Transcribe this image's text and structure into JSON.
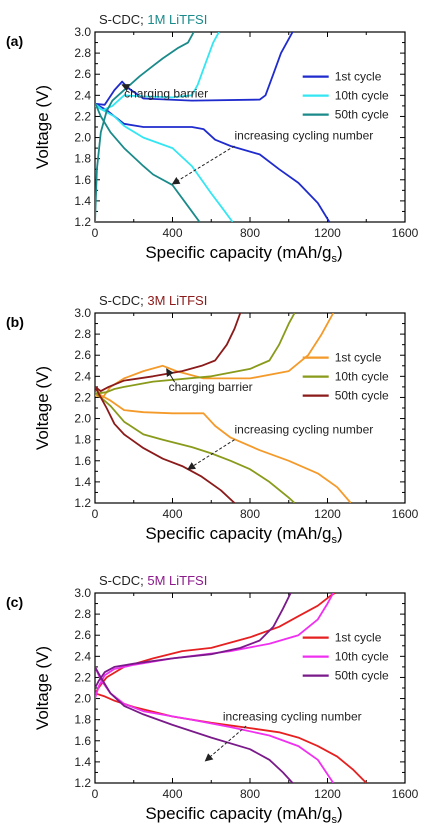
{
  "figure": {
    "x_label_main": "Specific capacity (mAh/g",
    "x_label_sub": "s",
    "x_label_end": ")",
    "y_label": "Voltage (V)"
  },
  "chart_data": [
    {
      "type": "line",
      "panel_label": "(a)",
      "title_prefix": "S-CDC; ",
      "title_highlight": "1M LiTFSI",
      "title_color": "#1a8a8a",
      "xlim": [
        0,
        1600
      ],
      "ylim": [
        1.2,
        3.0
      ],
      "x_ticks": [
        "0",
        "400",
        "800",
        "1200",
        "1600"
      ],
      "y_ticks": [
        "1.2",
        "1.4",
        "1.6",
        "1.8",
        "2.0",
        "2.2",
        "2.4",
        "2.6",
        "2.8",
        "3.0"
      ],
      "annotations": [
        {
          "text": "charging barrier",
          "x": 150,
          "y": 2.38,
          "arrow_to": [
            140,
            2.5
          ]
        },
        {
          "text": "increasing cycling number",
          "x": 720,
          "y": 1.98,
          "arrow_from": [
            720,
            1.92
          ],
          "arrow_to": [
            400,
            1.56
          ]
        }
      ],
      "series": [
        {
          "name": "1st cycle",
          "color": "#1f2bcc",
          "discharge": [
            [
              0,
              2.31
            ],
            [
              20,
              2.3
            ],
            [
              60,
              2.26
            ],
            [
              100,
              2.2
            ],
            [
              150,
              2.13
            ],
            [
              250,
              2.1
            ],
            [
              500,
              2.1
            ],
            [
              560,
              2.08
            ],
            [
              620,
              1.98
            ],
            [
              700,
              1.92
            ],
            [
              850,
              1.84
            ],
            [
              950,
              1.7
            ],
            [
              1050,
              1.57
            ],
            [
              1150,
              1.38
            ],
            [
              1210,
              1.2
            ]
          ],
          "charge": [
            [
              0,
              2.32
            ],
            [
              50,
              2.31
            ],
            [
              100,
              2.45
            ],
            [
              140,
              2.53
            ],
            [
              170,
              2.47
            ],
            [
              250,
              2.37
            ],
            [
              500,
              2.35
            ],
            [
              850,
              2.36
            ],
            [
              880,
              2.4
            ],
            [
              920,
              2.6
            ],
            [
              960,
              2.8
            ],
            [
              1020,
              3.0
            ]
          ]
        },
        {
          "name": "10th cycle",
          "color": "#33e6f2",
          "discharge": [
            [
              0,
              2.32
            ],
            [
              40,
              2.26
            ],
            [
              100,
              2.2
            ],
            [
              150,
              2.11
            ],
            [
              250,
              2.0
            ],
            [
              400,
              1.9
            ],
            [
              500,
              1.73
            ],
            [
              600,
              1.47
            ],
            [
              650,
              1.35
            ],
            [
              710,
              1.2
            ]
          ],
          "charge": [
            [
              0,
              2.3
            ],
            [
              40,
              2.26
            ],
            [
              90,
              2.3
            ],
            [
              150,
              2.4
            ],
            [
              250,
              2.39
            ],
            [
              400,
              2.38
            ],
            [
              500,
              2.4
            ],
            [
              530,
              2.5
            ],
            [
              570,
              2.7
            ],
            [
              610,
              2.9
            ],
            [
              640,
              3.0
            ]
          ]
        },
        {
          "name": "50th cycle",
          "color": "#1a8a8a",
          "discharge": [
            [
              0,
              2.33
            ],
            [
              30,
              2.2
            ],
            [
              80,
              2.05
            ],
            [
              150,
              1.9
            ],
            [
              250,
              1.73
            ],
            [
              300,
              1.65
            ],
            [
              400,
              1.55
            ],
            [
              480,
              1.35
            ],
            [
              540,
              1.2
            ]
          ],
          "charge": [
            [
              0,
              1.2
            ],
            [
              10,
              1.7
            ],
            [
              30,
              2.05
            ],
            [
              60,
              2.25
            ],
            [
              90,
              2.35
            ],
            [
              150,
              2.45
            ],
            [
              230,
              2.58
            ],
            [
              300,
              2.68
            ],
            [
              350,
              2.75
            ],
            [
              430,
              2.85
            ],
            [
              480,
              2.9
            ],
            [
              510,
              3.0
            ]
          ]
        }
      ]
    },
    {
      "type": "line",
      "panel_label": "(b)",
      "title_prefix": "S-CDC; ",
      "title_highlight": "3M LiTFSI",
      "title_color": "#8b1a1a",
      "xlim": [
        0,
        1600
      ],
      "ylim": [
        1.2,
        3.0
      ],
      "x_ticks": [
        "0",
        "400",
        "800",
        "1200",
        "1600"
      ],
      "y_ticks": [
        "1.2",
        "1.4",
        "1.6",
        "1.8",
        "2.0",
        "2.2",
        "2.4",
        "2.6",
        "2.8",
        "3.0"
      ],
      "annotations": [
        {
          "text": "charging barrier",
          "x": 380,
          "y": 2.26,
          "arrow_to": [
            370,
            2.47
          ]
        },
        {
          "text": "increasing cycling number",
          "x": 720,
          "y": 1.86,
          "arrow_from": [
            720,
            1.8
          ],
          "arrow_to": [
            480,
            1.52
          ]
        }
      ],
      "series": [
        {
          "name": "1st cycle",
          "color": "#f49a2a",
          "discharge": [
            [
              0,
              2.3
            ],
            [
              30,
              2.22
            ],
            [
              80,
              2.17
            ],
            [
              150,
              2.08
            ],
            [
              250,
              2.06
            ],
            [
              400,
              2.05
            ],
            [
              560,
              2.05
            ],
            [
              620,
              1.93
            ],
            [
              700,
              1.82
            ],
            [
              850,
              1.7
            ],
            [
              1000,
              1.6
            ],
            [
              1150,
              1.48
            ],
            [
              1250,
              1.35
            ],
            [
              1320,
              1.2
            ]
          ],
          "charge": [
            [
              0,
              2.22
            ],
            [
              40,
              2.2
            ],
            [
              80,
              2.3
            ],
            [
              150,
              2.38
            ],
            [
              250,
              2.45
            ],
            [
              350,
              2.5
            ],
            [
              420,
              2.45
            ],
            [
              560,
              2.38
            ],
            [
              800,
              2.38
            ],
            [
              1000,
              2.45
            ],
            [
              1100,
              2.6
            ],
            [
              1170,
              2.8
            ],
            [
              1230,
              3.0
            ]
          ]
        },
        {
          "name": "10th cycle",
          "color": "#8a9a1a",
          "discharge": [
            [
              0,
              2.25
            ],
            [
              30,
              2.2
            ],
            [
              80,
              2.12
            ],
            [
              150,
              1.97
            ],
            [
              250,
              1.85
            ],
            [
              350,
              1.8
            ],
            [
              500,
              1.73
            ],
            [
              600,
              1.67
            ],
            [
              700,
              1.6
            ],
            [
              800,
              1.52
            ],
            [
              900,
              1.4
            ],
            [
              1000,
              1.25
            ],
            [
              1030,
              1.2
            ]
          ],
          "charge": [
            [
              0,
              2.3
            ],
            [
              20,
              2.24
            ],
            [
              60,
              2.25
            ],
            [
              100,
              2.28
            ],
            [
              150,
              2.3
            ],
            [
              300,
              2.35
            ],
            [
              600,
              2.4
            ],
            [
              800,
              2.47
            ],
            [
              900,
              2.55
            ],
            [
              950,
              2.7
            ],
            [
              1000,
              2.9
            ],
            [
              1030,
              3.0
            ]
          ]
        },
        {
          "name": "50th cycle",
          "color": "#8b1a1a",
          "discharge": [
            [
              0,
              2.3
            ],
            [
              30,
              2.2
            ],
            [
              60,
              2.1
            ],
            [
              100,
              1.95
            ],
            [
              150,
              1.85
            ],
            [
              250,
              1.72
            ],
            [
              350,
              1.62
            ],
            [
              450,
              1.55
            ],
            [
              550,
              1.45
            ],
            [
              650,
              1.32
            ],
            [
              720,
              1.2
            ]
          ],
          "charge": [
            [
              0,
              2.3
            ],
            [
              30,
              2.26
            ],
            [
              70,
              2.3
            ],
            [
              150,
              2.36
            ],
            [
              300,
              2.4
            ],
            [
              450,
              2.45
            ],
            [
              550,
              2.5
            ],
            [
              620,
              2.55
            ],
            [
              680,
              2.7
            ],
            [
              720,
              2.85
            ],
            [
              750,
              3.0
            ]
          ]
        }
      ]
    },
    {
      "type": "line",
      "panel_label": "(c)",
      "title_prefix": "S-CDC; ",
      "title_highlight": "5M LiTFSI",
      "title_color": "#8b1a8b",
      "xlim": [
        0,
        1600
      ],
      "ylim": [
        1.2,
        3.0
      ],
      "x_ticks": [
        "0",
        "400",
        "800",
        "1200",
        "1600"
      ],
      "y_ticks": [
        "1.2",
        "1.4",
        "1.6",
        "1.8",
        "2.0",
        "2.2",
        "2.4",
        "2.6",
        "2.8",
        "3.0"
      ],
      "annotations": [
        {
          "text": "increasing cycling number",
          "x": 660,
          "y": 1.79,
          "arrow_from": [
            780,
            1.74
          ],
          "arrow_to": [
            570,
            1.41
          ]
        }
      ],
      "series": [
        {
          "name": "1st cycle",
          "color": "#e62020",
          "discharge": [
            [
              0,
              2.05
            ],
            [
              50,
              2.02
            ],
            [
              100,
              1.98
            ],
            [
              200,
              1.92
            ],
            [
              400,
              1.83
            ],
            [
              600,
              1.77
            ],
            [
              800,
              1.72
            ],
            [
              950,
              1.68
            ],
            [
              1050,
              1.63
            ],
            [
              1150,
              1.55
            ],
            [
              1250,
              1.45
            ],
            [
              1330,
              1.33
            ],
            [
              1400,
              1.2
            ]
          ],
          "charge": [
            [
              0,
              2.05
            ],
            [
              30,
              2.13
            ],
            [
              60,
              2.2
            ],
            [
              150,
              2.3
            ],
            [
              300,
              2.38
            ],
            [
              450,
              2.45
            ],
            [
              600,
              2.48
            ],
            [
              800,
              2.58
            ],
            [
              950,
              2.68
            ],
            [
              1050,
              2.78
            ],
            [
              1150,
              2.88
            ],
            [
              1220,
              2.98
            ],
            [
              1240,
              3.0
            ]
          ]
        },
        {
          "name": "10th cycle",
          "color": "#f030f0",
          "discharge": [
            [
              0,
              2.3
            ],
            [
              30,
              2.18
            ],
            [
              80,
              2.05
            ],
            [
              150,
              1.95
            ],
            [
              250,
              1.88
            ],
            [
              500,
              1.8
            ],
            [
              700,
              1.73
            ],
            [
              900,
              1.65
            ],
            [
              1050,
              1.55
            ],
            [
              1150,
              1.42
            ],
            [
              1230,
              1.2
            ]
          ],
          "charge": [
            [
              0,
              2.0
            ],
            [
              20,
              2.12
            ],
            [
              50,
              2.22
            ],
            [
              100,
              2.28
            ],
            [
              200,
              2.32
            ],
            [
              400,
              2.38
            ],
            [
              700,
              2.45
            ],
            [
              900,
              2.52
            ],
            [
              1050,
              2.6
            ],
            [
              1150,
              2.75
            ],
            [
              1200,
              2.9
            ],
            [
              1230,
              3.0
            ]
          ]
        },
        {
          "name": "50th cycle",
          "color": "#7a1a8a",
          "discharge": [
            [
              0,
              2.3
            ],
            [
              30,
              2.2
            ],
            [
              80,
              2.05
            ],
            [
              150,
              1.93
            ],
            [
              250,
              1.85
            ],
            [
              400,
              1.75
            ],
            [
              600,
              1.63
            ],
            [
              800,
              1.52
            ],
            [
              900,
              1.42
            ],
            [
              970,
              1.3
            ],
            [
              1020,
              1.2
            ]
          ],
          "charge": [
            [
              0,
              2.1
            ],
            [
              20,
              2.17
            ],
            [
              50,
              2.25
            ],
            [
              100,
              2.3
            ],
            [
              200,
              2.33
            ],
            [
              400,
              2.38
            ],
            [
              600,
              2.42
            ],
            [
              750,
              2.48
            ],
            [
              850,
              2.55
            ],
            [
              920,
              2.68
            ],
            [
              970,
              2.85
            ],
            [
              1010,
              3.0
            ]
          ]
        }
      ]
    }
  ]
}
